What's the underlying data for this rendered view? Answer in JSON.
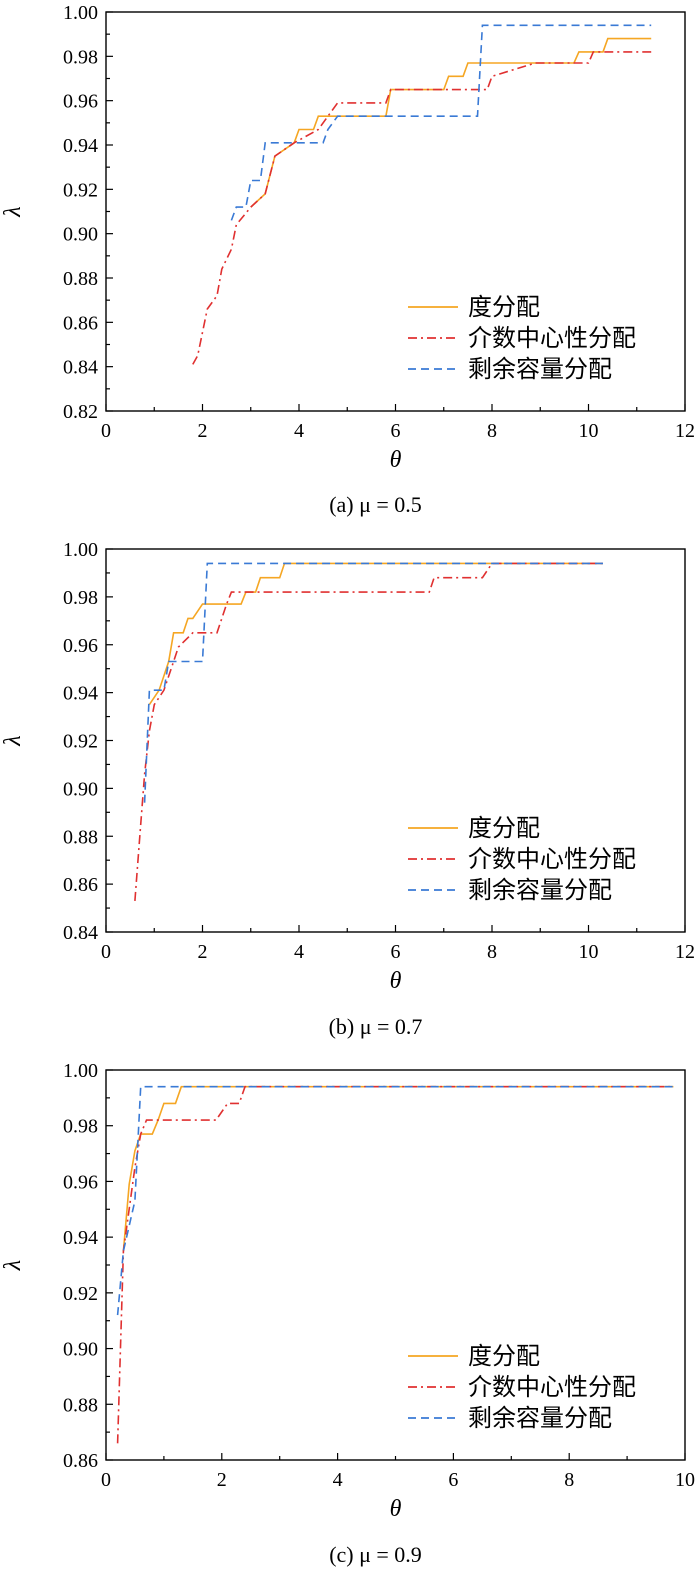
{
  "chart_data": [
    {
      "type": "line",
      "caption": "(a) μ = 0.5",
      "xlabel": "θ",
      "ylabel": "λ",
      "xlim": [
        0,
        12
      ],
      "ylim": [
        0.82,
        1.0
      ],
      "xticks": [
        0,
        2,
        4,
        6,
        8,
        10,
        12
      ],
      "yticks": [
        0.82,
        0.84,
        0.86,
        0.88,
        0.9,
        0.92,
        0.94,
        0.96,
        0.98,
        1.0
      ],
      "legend_position": "bottom-right",
      "series": [
        {
          "name": "度分配",
          "color": "#f5a623",
          "style": "solid",
          "points": [
            [
              3.0,
              0.912
            ],
            [
              3.3,
              0.918
            ],
            [
              3.5,
              0.935
            ],
            [
              3.9,
              0.941
            ],
            [
              4.0,
              0.947
            ],
            [
              4.3,
              0.947
            ],
            [
              4.4,
              0.953
            ],
            [
              5.8,
              0.953
            ],
            [
              5.9,
              0.965
            ],
            [
              7.0,
              0.965
            ],
            [
              7.1,
              0.971
            ],
            [
              7.4,
              0.971
            ],
            [
              7.5,
              0.977
            ],
            [
              9.7,
              0.977
            ],
            [
              9.8,
              0.982
            ],
            [
              10.3,
              0.982
            ],
            [
              10.4,
              0.988
            ],
            [
              11.3,
              0.988
            ]
          ]
        },
        {
          "name": "介数中心性分配",
          "color": "#e03030",
          "style": "dashdot",
          "points": [
            [
              1.8,
              0.841
            ],
            [
              1.9,
              0.845
            ],
            [
              2.1,
              0.866
            ],
            [
              2.3,
              0.872
            ],
            [
              2.4,
              0.884
            ],
            [
              2.6,
              0.893
            ],
            [
              2.7,
              0.904
            ],
            [
              3.0,
              0.912
            ],
            [
              3.3,
              0.918
            ],
            [
              3.5,
              0.935
            ],
            [
              3.9,
              0.941
            ],
            [
              4.4,
              0.947
            ],
            [
              4.8,
              0.959
            ],
            [
              5.8,
              0.959
            ],
            [
              5.9,
              0.965
            ],
            [
              7.9,
              0.965
            ],
            [
              8.0,
              0.971
            ],
            [
              8.9,
              0.977
            ],
            [
              10.0,
              0.977
            ],
            [
              10.1,
              0.982
            ],
            [
              11.3,
              0.982
            ]
          ]
        },
        {
          "name": "剩余容量分配",
          "color": "#3a7ad5",
          "style": "dashed",
          "points": [
            [
              2.6,
              0.906
            ],
            [
              2.7,
              0.912
            ],
            [
              2.9,
              0.912
            ],
            [
              3.0,
              0.924
            ],
            [
              3.2,
              0.924
            ],
            [
              3.3,
              0.941
            ],
            [
              4.5,
              0.941
            ],
            [
              4.6,
              0.947
            ],
            [
              4.8,
              0.953
            ],
            [
              7.7,
              0.953
            ],
            [
              7.8,
              0.994
            ],
            [
              11.3,
              0.994
            ]
          ]
        }
      ]
    },
    {
      "type": "line",
      "caption": "(b) μ = 0.7",
      "xlabel": "θ",
      "ylabel": "λ",
      "xlim": [
        0,
        12
      ],
      "ylim": [
        0.84,
        1.0
      ],
      "xticks": [
        0,
        2,
        4,
        6,
        8,
        10,
        12
      ],
      "yticks": [
        0.84,
        0.86,
        0.88,
        0.9,
        0.92,
        0.94,
        0.96,
        0.98,
        1.0
      ],
      "legend_position": "bottom-right",
      "series": [
        {
          "name": "度分配",
          "color": "#f5a623",
          "style": "solid",
          "points": [
            [
              0.9,
              0.935
            ],
            [
              1.1,
              0.941
            ],
            [
              1.3,
              0.953
            ],
            [
              1.4,
              0.965
            ],
            [
              1.6,
              0.965
            ],
            [
              1.7,
              0.971
            ],
            [
              1.8,
              0.971
            ],
            [
              2.0,
              0.977
            ],
            [
              2.8,
              0.977
            ],
            [
              2.9,
              0.982
            ],
            [
              3.1,
              0.982
            ],
            [
              3.2,
              0.988
            ],
            [
              3.6,
              0.988
            ],
            [
              3.7,
              0.994
            ],
            [
              10.3,
              0.994
            ]
          ]
        },
        {
          "name": "介数中心性分配",
          "color": "#e03030",
          "style": "dashdot",
          "points": [
            [
              0.6,
              0.853
            ],
            [
              0.7,
              0.88
            ],
            [
              0.8,
              0.906
            ],
            [
              0.9,
              0.924
            ],
            [
              1.0,
              0.935
            ],
            [
              1.2,
              0.941
            ],
            [
              1.4,
              0.953
            ],
            [
              1.5,
              0.959
            ],
            [
              1.8,
              0.965
            ],
            [
              2.3,
              0.965
            ],
            [
              2.5,
              0.977
            ],
            [
              2.6,
              0.982
            ],
            [
              6.7,
              0.982
            ],
            [
              6.8,
              0.988
            ],
            [
              7.8,
              0.988
            ],
            [
              8.0,
              0.994
            ],
            [
              10.3,
              0.994
            ]
          ]
        },
        {
          "name": "剩余容量分配",
          "color": "#3a7ad5",
          "style": "dashed",
          "points": [
            [
              0.8,
              0.894
            ],
            [
              0.9,
              0.941
            ],
            [
              1.2,
              0.941
            ],
            [
              1.3,
              0.953
            ],
            [
              2.0,
              0.953
            ],
            [
              2.1,
              0.994
            ],
            [
              10.3,
              0.994
            ]
          ]
        }
      ]
    },
    {
      "type": "line",
      "caption": "(c) μ = 0.9",
      "xlabel": "θ",
      "ylabel": "λ",
      "xlim": [
        0,
        10
      ],
      "ylim": [
        0.86,
        1.0
      ],
      "xticks": [
        0,
        2,
        4,
        6,
        8,
        10
      ],
      "yticks": [
        0.86,
        0.88,
        0.9,
        0.92,
        0.94,
        0.96,
        0.98,
        1.0
      ],
      "legend_position": "bottom-right",
      "series": [
        {
          "name": "度分配",
          "color": "#f5a623",
          "style": "solid",
          "points": [
            [
              0.3,
              0.935
            ],
            [
              0.4,
              0.959
            ],
            [
              0.5,
              0.971
            ],
            [
              0.6,
              0.977
            ],
            [
              0.8,
              0.977
            ],
            [
              0.9,
              0.982
            ],
            [
              1.0,
              0.988
            ],
            [
              1.2,
              0.988
            ],
            [
              1.3,
              0.994
            ],
            [
              9.8,
              0.994
            ]
          ]
        },
        {
          "name": "介数中心性分配",
          "color": "#e03030",
          "style": "dashdot",
          "points": [
            [
              0.2,
              0.866
            ],
            [
              0.3,
              0.935
            ],
            [
              0.5,
              0.965
            ],
            [
              0.6,
              0.977
            ],
            [
              0.7,
              0.982
            ],
            [
              1.9,
              0.982
            ],
            [
              2.1,
              0.988
            ],
            [
              2.3,
              0.988
            ],
            [
              2.4,
              0.994
            ],
            [
              9.8,
              0.994
            ]
          ]
        },
        {
          "name": "剩余容量分配",
          "color": "#3a7ad5",
          "style": "dashed",
          "points": [
            [
              0.2,
              0.912
            ],
            [
              0.3,
              0.935
            ],
            [
              0.5,
              0.953
            ],
            [
              0.6,
              0.994
            ],
            [
              9.8,
              0.994
            ]
          ]
        }
      ]
    }
  ]
}
